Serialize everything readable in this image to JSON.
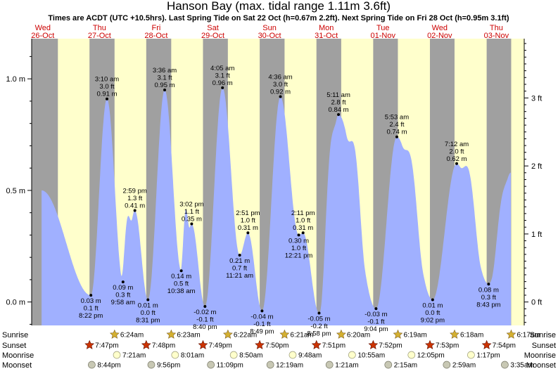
{
  "chart_data": {
    "type": "area",
    "title": "Hanson Bay (max. tidal range 1.11m 3.6ft)",
    "subtitle": "Times are ACDT (UTC +10.5hrs). Last Spring Tide on Sat 22 Oct (h=0.67m 2.2ft). Next Spring Tide on Fri 28 Oct (h=0.95m 3.1ft)",
    "x_unit": "hours since 26-Oct 00:00",
    "xlim": [
      -4.7,
      203.8
    ],
    "ylabel_left": "metres",
    "ylabel_right": "feet",
    "ylim": [
      -0.105,
      1.18
    ],
    "left_ticks": [
      {
        "v": 0,
        "label": "0.0 m"
      },
      {
        "v": 0.5,
        "label": "0.5 m"
      },
      {
        "v": 1.0,
        "label": "1.0 m"
      }
    ],
    "right_ticks": [
      {
        "v": 0,
        "label": "0 ft"
      },
      {
        "v": 0.3048,
        "label": "1 ft"
      },
      {
        "v": 0.6096,
        "label": "2 ft"
      },
      {
        "v": 0.9144,
        "label": "3 ft"
      }
    ],
    "days": [
      {
        "dow": "Wed",
        "date": "26-Oct"
      },
      {
        "dow": "Thu",
        "date": "27-Oct"
      },
      {
        "dow": "Fri",
        "date": "28-Oct"
      },
      {
        "dow": "Sat",
        "date": "29-Oct"
      },
      {
        "dow": "Sun",
        "date": "30-Oct"
      },
      {
        "dow": "Mon",
        "date": "31-Oct"
      },
      {
        "dow": "Tue",
        "date": "01-Nov"
      },
      {
        "dow": "Wed",
        "date": "02-Nov"
      },
      {
        "dow": "Thu",
        "date": "03-Nov"
      }
    ],
    "night_bands": [
      [
        -4.7,
        6.4
      ],
      [
        19.78,
        30.38
      ],
      [
        43.8,
        54.37
      ],
      [
        67.82,
        78.35
      ],
      [
        91.83,
        102.35
      ],
      [
        115.85,
        126.33
      ],
      [
        139.87,
        150.32
      ],
      [
        163.88,
        174.3
      ],
      [
        187.9,
        198.28
      ]
    ],
    "extremes": [
      {
        "t": -0.5,
        "h": 0.5
      },
      {
        "t": 20.37,
        "h": 0.03,
        "time": "8:22 pm",
        "ft": "0.1 ft",
        "m": "0.03 m",
        "kind": "low"
      },
      {
        "t": 27.17,
        "h": 0.91,
        "time": "3:10 am",
        "ft": "3.0 ft",
        "m": "0.91 m",
        "kind": "high"
      },
      {
        "t": 33.97,
        "h": 0.09,
        "time": "9:58 am",
        "ft": "0.3 ft",
        "m": "0.09 m",
        "kind": "low"
      },
      {
        "t": 38.98,
        "h": 0.41,
        "time": "2:59 pm",
        "ft": "1.3 ft",
        "m": "0.41 m",
        "kind": "high"
      },
      {
        "t": 44.52,
        "h": 0.01,
        "time": "8:31 pm",
        "ft": "0.0 ft",
        "m": "0.01 m",
        "kind": "low"
      },
      {
        "t": 51.6,
        "h": 0.95,
        "time": "3:36 am",
        "ft": "3.1 ft",
        "m": "0.95 m",
        "kind": "high"
      },
      {
        "t": 58.63,
        "h": 0.14,
        "time": "10:38 am",
        "ft": "0.5 ft",
        "m": "0.14 m",
        "kind": "low"
      },
      {
        "t": 63.03,
        "h": 0.35,
        "time": "3:02 pm",
        "ft": "1.1 ft",
        "m": "0.35 m",
        "kind": "high"
      },
      {
        "t": 68.67,
        "h": -0.02,
        "time": "8:40 pm",
        "ft": "-0.1 ft",
        "m": "-0.02 m",
        "kind": "low"
      },
      {
        "t": 76.08,
        "h": 0.96,
        "time": "4:05 am",
        "ft": "3.1 ft",
        "m": "0.96 m",
        "kind": "high"
      },
      {
        "t": 83.35,
        "h": 0.21,
        "time": "11:21 am",
        "ft": "0.7 ft",
        "m": "0.21 m",
        "kind": "low"
      },
      {
        "t": 86.85,
        "h": 0.31,
        "time": "2:51 pm",
        "ft": "1.0 ft",
        "m": "0.31 m",
        "kind": "high"
      },
      {
        "t": 92.82,
        "h": -0.04,
        "time": "8:49 pm",
        "ft": "-0.1 ft",
        "m": "-0.04 m",
        "kind": "low"
      },
      {
        "t": 100.6,
        "h": 0.92,
        "time": "4:36 am",
        "ft": "3.0 ft",
        "m": "0.92 m",
        "kind": "high"
      },
      {
        "t": 108.35,
        "h": 0.3,
        "time": "12:21 pm",
        "ft": "1.0 ft",
        "m": "0.30 m",
        "kind": "low"
      },
      {
        "t": 110.18,
        "h": 0.31,
        "time": "2:11 pm",
        "ft": "1.0 ft",
        "m": "0.31 m",
        "kind": "high"
      },
      {
        "t": 116.97,
        "h": -0.05,
        "time": "8:58 pm",
        "ft": "-0.2 ft",
        "m": "-0.05 m",
        "kind": "low"
      },
      {
        "t": 125.18,
        "h": 0.84,
        "time": "5:11 am",
        "ft": "2.8 ft",
        "m": "0.84 m",
        "kind": "high"
      },
      {
        "t": 141.07,
        "h": -0.03,
        "time": "9:04 pm",
        "ft": "-0.1 ft",
        "m": "-0.03 m",
        "kind": "low"
      },
      {
        "t": 149.88,
        "h": 0.74,
        "time": "5:53 am",
        "ft": "2.4 ft",
        "m": "0.74 m",
        "kind": "high"
      },
      {
        "t": 165.03,
        "h": 0.01,
        "time": "9:02 pm",
        "ft": "0.0 ft",
        "m": "0.01 m",
        "kind": "low"
      },
      {
        "t": 175.2,
        "h": 0.62,
        "time": "7:12 am",
        "ft": "2.0 ft",
        "m": "0.62 m",
        "kind": "high"
      },
      {
        "t": 188.72,
        "h": 0.08,
        "time": "8:43 pm",
        "ft": "0.3 ft",
        "m": "0.08 m",
        "kind": "low"
      },
      {
        "t": 198.2,
        "h": 0.58
      }
    ],
    "shoulders": [
      {
        "t": 35.5,
        "h": 0.2,
        "w": 2.5
      },
      {
        "t": 60.3,
        "h": 0.2,
        "w": 2.0
      },
      {
        "t": 120.9,
        "h": 0.22,
        "w": 3.5
      },
      {
        "t": 132.5,
        "h": 0.2,
        "w": 4.0
      },
      {
        "t": 156.5,
        "h": 0.16,
        "w": 4.5
      },
      {
        "t": 181.0,
        "h": 0.15,
        "w": 4.5
      },
      {
        "t": 193.5,
        "h": 0.08,
        "w": 3.5
      }
    ],
    "astro_rows": [
      {
        "label": "Sunrise",
        "icon": "sun",
        "events": [
          {
            "t": 30.4,
            "text": "6:24am"
          },
          {
            "t": 54.38,
            "text": "6:23am"
          },
          {
            "t": 78.37,
            "text": "6:22am"
          },
          {
            "t": 102.35,
            "text": "6:21am"
          },
          {
            "t": 126.33,
            "text": "6:20am"
          },
          {
            "t": 150.32,
            "text": "6:19am"
          },
          {
            "t": 174.3,
            "text": "6:18am"
          },
          {
            "t": 198.28,
            "text": "6:17am"
          }
        ]
      },
      {
        "label": "Sunset",
        "icon": "star",
        "events": [
          {
            "t": 19.78,
            "text": "7:47pm"
          },
          {
            "t": 43.8,
            "text": "7:48pm"
          },
          {
            "t": 67.82,
            "text": "7:49pm"
          },
          {
            "t": 91.83,
            "text": "7:50pm"
          },
          {
            "t": 115.85,
            "text": "7:51pm"
          },
          {
            "t": 139.87,
            "text": "7:52pm"
          },
          {
            "t": 163.88,
            "text": "7:53pm"
          },
          {
            "t": 187.9,
            "text": "7:54pm"
          }
        ]
      },
      {
        "label": "Moonrise",
        "icon": "moon",
        "events": [
          {
            "t": 31.35,
            "text": "7:21am"
          },
          {
            "t": 56.02,
            "text": "8:01am"
          },
          {
            "t": 80.83,
            "text": "8:50am"
          },
          {
            "t": 105.8,
            "text": "9:48am"
          },
          {
            "t": 130.92,
            "text": "10:55am"
          },
          {
            "t": 156.08,
            "text": "12:05pm"
          },
          {
            "t": 181.28,
            "text": "1:17pm"
          }
        ]
      },
      {
        "label": "Moonset",
        "icon": "moonset",
        "events": [
          {
            "t": 20.73,
            "text": "8:44pm"
          },
          {
            "t": 45.93,
            "text": "9:56pm"
          },
          {
            "t": 71.15,
            "text": "11:09pm"
          },
          {
            "t": 96.32,
            "text": "12:19am"
          },
          {
            "t": 121.35,
            "text": "1:21am"
          },
          {
            "t": 146.25,
            "text": "2:15am"
          },
          {
            "t": 170.98,
            "text": "2:59am"
          },
          {
            "t": 195.58,
            "text": "3:35am"
          }
        ]
      }
    ]
  },
  "colors": {
    "day_band": "#ffffcc",
    "night_band": "#a0a0a0",
    "tide_fill": "#a0b0ff",
    "day_name": "#cc0000",
    "sun_icon": "#d4b030",
    "sunset_icon": "#cc3300",
    "moon_icon": "#ffffcc",
    "moonset_icon": "#c8c8b4"
  }
}
